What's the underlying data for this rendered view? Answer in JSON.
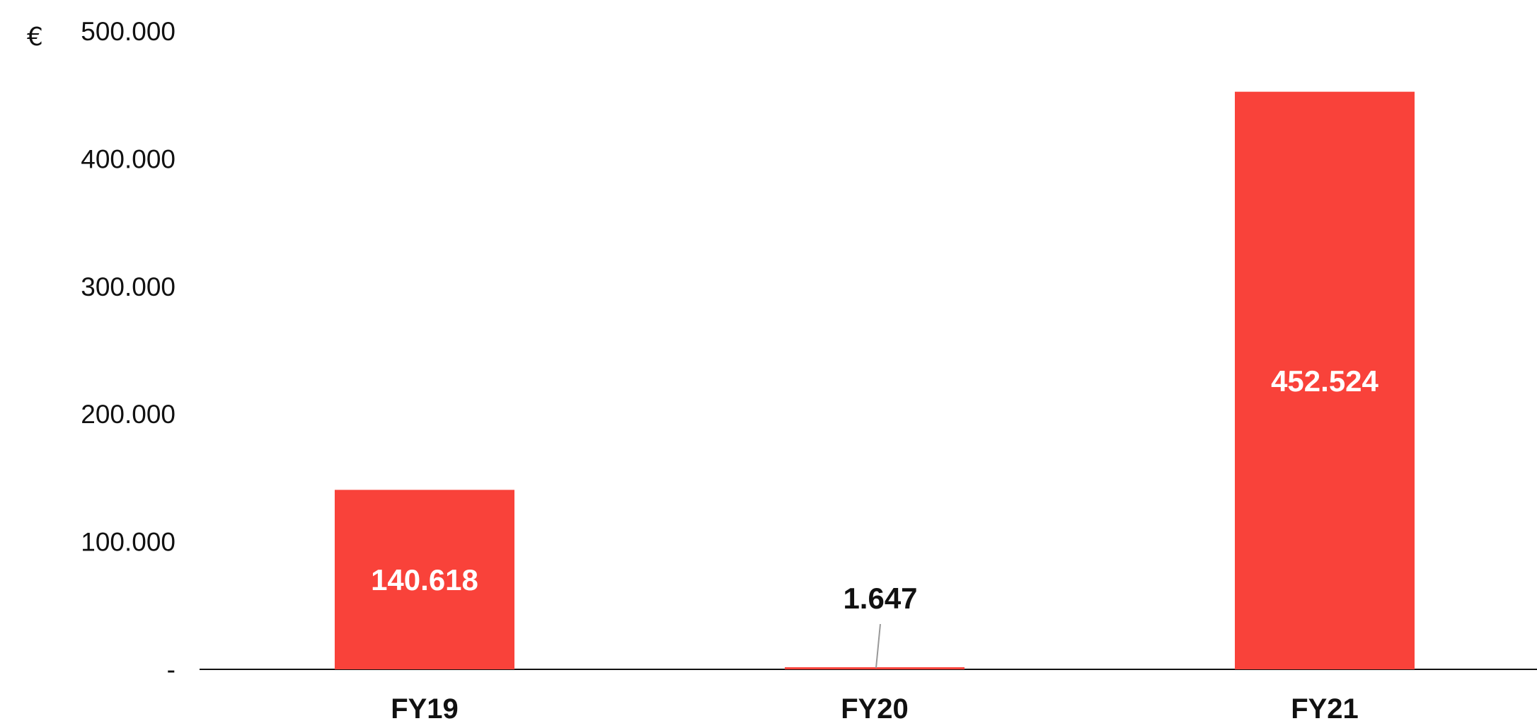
{
  "chart_data": {
    "type": "bar",
    "unit": "€",
    "categories": [
      "FY19",
      "FY20",
      "FY21"
    ],
    "values": [
      140618,
      1647,
      452524
    ],
    "data_labels": [
      "140.618",
      "1.647",
      "452.524"
    ],
    "ylim": [
      0,
      500000
    ],
    "y_ticks": [
      {
        "value": 0,
        "label": "-"
      },
      {
        "value": 100000,
        "label": "100.000"
      },
      {
        "value": 200000,
        "label": "200.000"
      },
      {
        "value": 300000,
        "label": "300.000"
      },
      {
        "value": 400000,
        "label": "400.000"
      },
      {
        "value": 500000,
        "label": "500.000"
      }
    ],
    "grid": false,
    "legend": "none",
    "colors": {
      "bar": "#f9423a",
      "label_inside": "#ffffff",
      "label_outside": "#111111",
      "axis": "#111111",
      "leader": "#999999"
    }
  }
}
